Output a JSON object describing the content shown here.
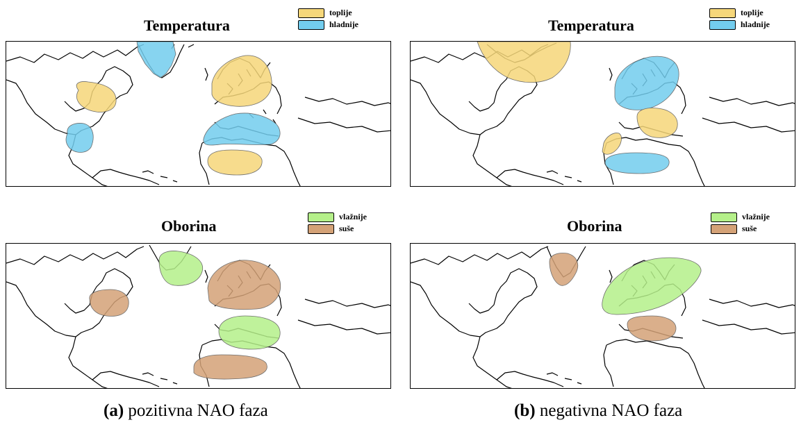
{
  "colors": {
    "warmer": "#f6d77a",
    "colder": "#73cdee",
    "wetter": "#b5f08a",
    "drier": "#d4a277",
    "land_outline": "#000000"
  },
  "legend": {
    "temperature": {
      "warmer_label": "toplije",
      "colder_label": "hladnije"
    },
    "precipitation": {
      "wetter_label": "vlažnije",
      "drier_label": "suše"
    }
  },
  "panels": {
    "a": {
      "temperature_title": "Temperatura",
      "precipitation_title": "Oborina",
      "caption_tag": "(a)",
      "caption_text": " pozitivna NAO faza",
      "temperature_regions": [
        {
          "name": "greenland",
          "category": "colder"
        },
        {
          "name": "central-north-america",
          "category": "warmer"
        },
        {
          "name": "gulf-of-mexico",
          "category": "colder"
        },
        {
          "name": "northern-europe",
          "category": "warmer"
        },
        {
          "name": "mediterranean",
          "category": "colder"
        },
        {
          "name": "north-africa",
          "category": "warmer"
        }
      ],
      "precipitation_regions": [
        {
          "name": "greenland",
          "category": "wetter"
        },
        {
          "name": "central-north-america",
          "category": "drier"
        },
        {
          "name": "northern-europe",
          "category": "drier"
        },
        {
          "name": "mediterranean",
          "category": "wetter"
        },
        {
          "name": "north-africa",
          "category": "drier"
        }
      ]
    },
    "b": {
      "temperature_title": "Temperatura",
      "precipitation_title": "Oborina",
      "caption_tag": "(b)",
      "caption_text": " negativna NAO faza",
      "temperature_regions": [
        {
          "name": "canada-greenland",
          "category": "warmer"
        },
        {
          "name": "northern-europe",
          "category": "colder"
        },
        {
          "name": "mediterranean",
          "category": "warmer"
        },
        {
          "name": "iberia",
          "category": "warmer"
        },
        {
          "name": "north-africa",
          "category": "colder"
        }
      ],
      "precipitation_regions": [
        {
          "name": "greenland",
          "category": "drier"
        },
        {
          "name": "northern-europe",
          "category": "wetter"
        },
        {
          "name": "mediterranean",
          "category": "drier"
        }
      ]
    }
  }
}
